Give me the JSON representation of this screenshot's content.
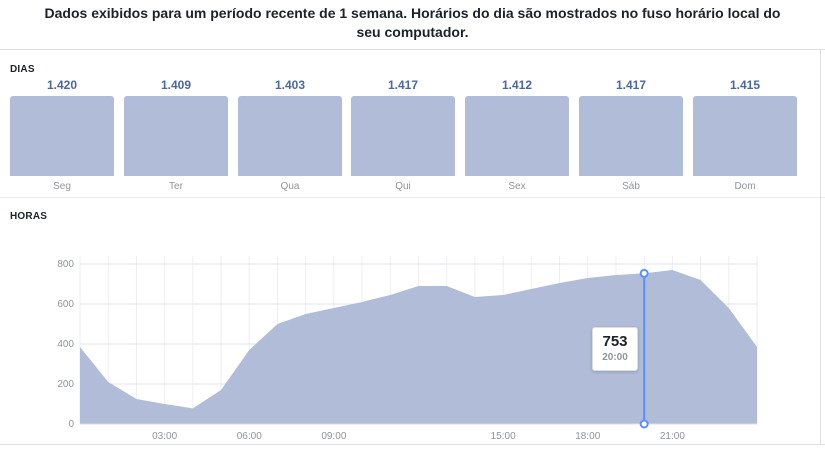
{
  "header": {
    "note": "Dados exibidos para um período recente de 1 semana. Horários do dia são mostrados no fuso horário local do seu computador."
  },
  "days_section": {
    "label": "DIAS",
    "days": [
      {
        "name": "Seg",
        "value": "1.420"
      },
      {
        "name": "Ter",
        "value": "1.409"
      },
      {
        "name": "Qua",
        "value": "1.403"
      },
      {
        "name": "Qui",
        "value": "1.417"
      },
      {
        "name": "Sex",
        "value": "1.412"
      },
      {
        "name": "Sáb",
        "value": "1.417"
      },
      {
        "name": "Dom",
        "value": "1.415"
      }
    ]
  },
  "hours_section": {
    "label": "HORAS",
    "tooltip": {
      "value": "753",
      "time": "20:00"
    }
  },
  "colors": {
    "bar_fill": "#b0bcd8",
    "area_fill": "#b0bcd8",
    "value_text": "#4b67a1",
    "marker_line": "#5890ff"
  },
  "chart_data": [
    {
      "type": "bar",
      "title": "DIAS",
      "categories": [
        "Seg",
        "Ter",
        "Qua",
        "Qui",
        "Sex",
        "Sáb",
        "Dom"
      ],
      "values": [
        1420,
        1409,
        1403,
        1417,
        1412,
        1417,
        1415
      ]
    },
    {
      "type": "area",
      "title": "HORAS",
      "x": [
        0,
        1,
        2,
        3,
        4,
        5,
        6,
        7,
        8,
        9,
        10,
        11,
        12,
        13,
        14,
        15,
        16,
        17,
        18,
        19,
        20,
        21,
        22,
        23,
        24
      ],
      "y": [
        385,
        210,
        125,
        100,
        78,
        170,
        370,
        500,
        550,
        580,
        610,
        645,
        690,
        690,
        635,
        645,
        675,
        705,
        730,
        745,
        753,
        770,
        720,
        580,
        385
      ],
      "xticks": [
        {
          "value": 3,
          "label": "03:00"
        },
        {
          "value": 6,
          "label": "06:00"
        },
        {
          "value": 9,
          "label": "09:00"
        },
        {
          "value": 15,
          "label": "15:00"
        },
        {
          "value": 18,
          "label": "18:00"
        },
        {
          "value": 21,
          "label": "21:00"
        }
      ],
      "yticks": [
        0,
        200,
        400,
        600,
        800
      ],
      "xlim": [
        0,
        24
      ],
      "ylim": [
        0,
        800
      ],
      "grid": true,
      "highlight": {
        "x": 20,
        "y": 753,
        "label": "20:00"
      }
    }
  ]
}
